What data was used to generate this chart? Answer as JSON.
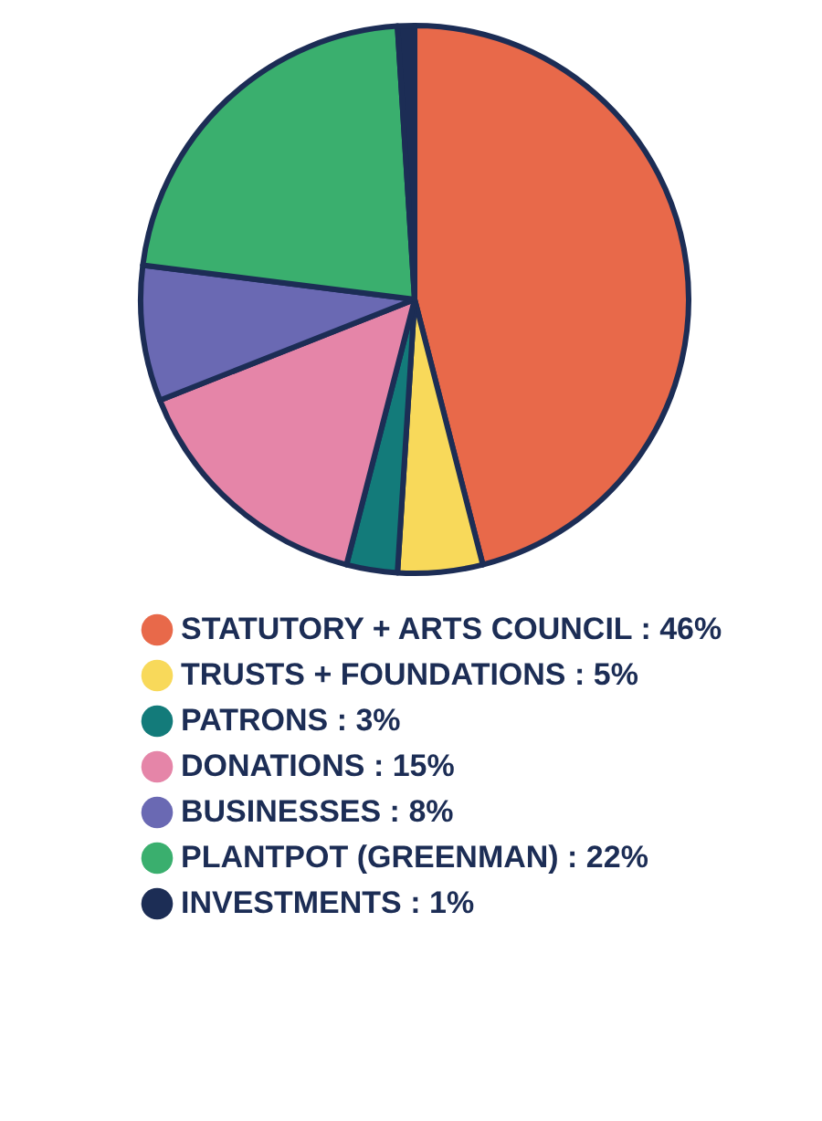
{
  "chart_data": {
    "type": "pie",
    "categories": [
      "STATUTORY + ARTS COUNCIL",
      "TRUSTS + FOUNDATIONS",
      "PATRONS",
      "DONATIONS",
      "BUSINESSES",
      "PLANTPOT (GREENMAN)",
      "INVESTMENTS"
    ],
    "values": [
      46,
      5,
      3,
      15,
      8,
      22,
      1
    ],
    "value_labels": [
      "46%",
      "5%",
      "3%",
      "15%",
      "8%",
      "22%",
      "1%"
    ],
    "colors": [
      "#e8694a",
      "#f8d95a",
      "#137b7a",
      "#e585a8",
      "#6a69b3",
      "#3aaf6e",
      "#1c2d55"
    ],
    "legend": "bottom"
  }
}
